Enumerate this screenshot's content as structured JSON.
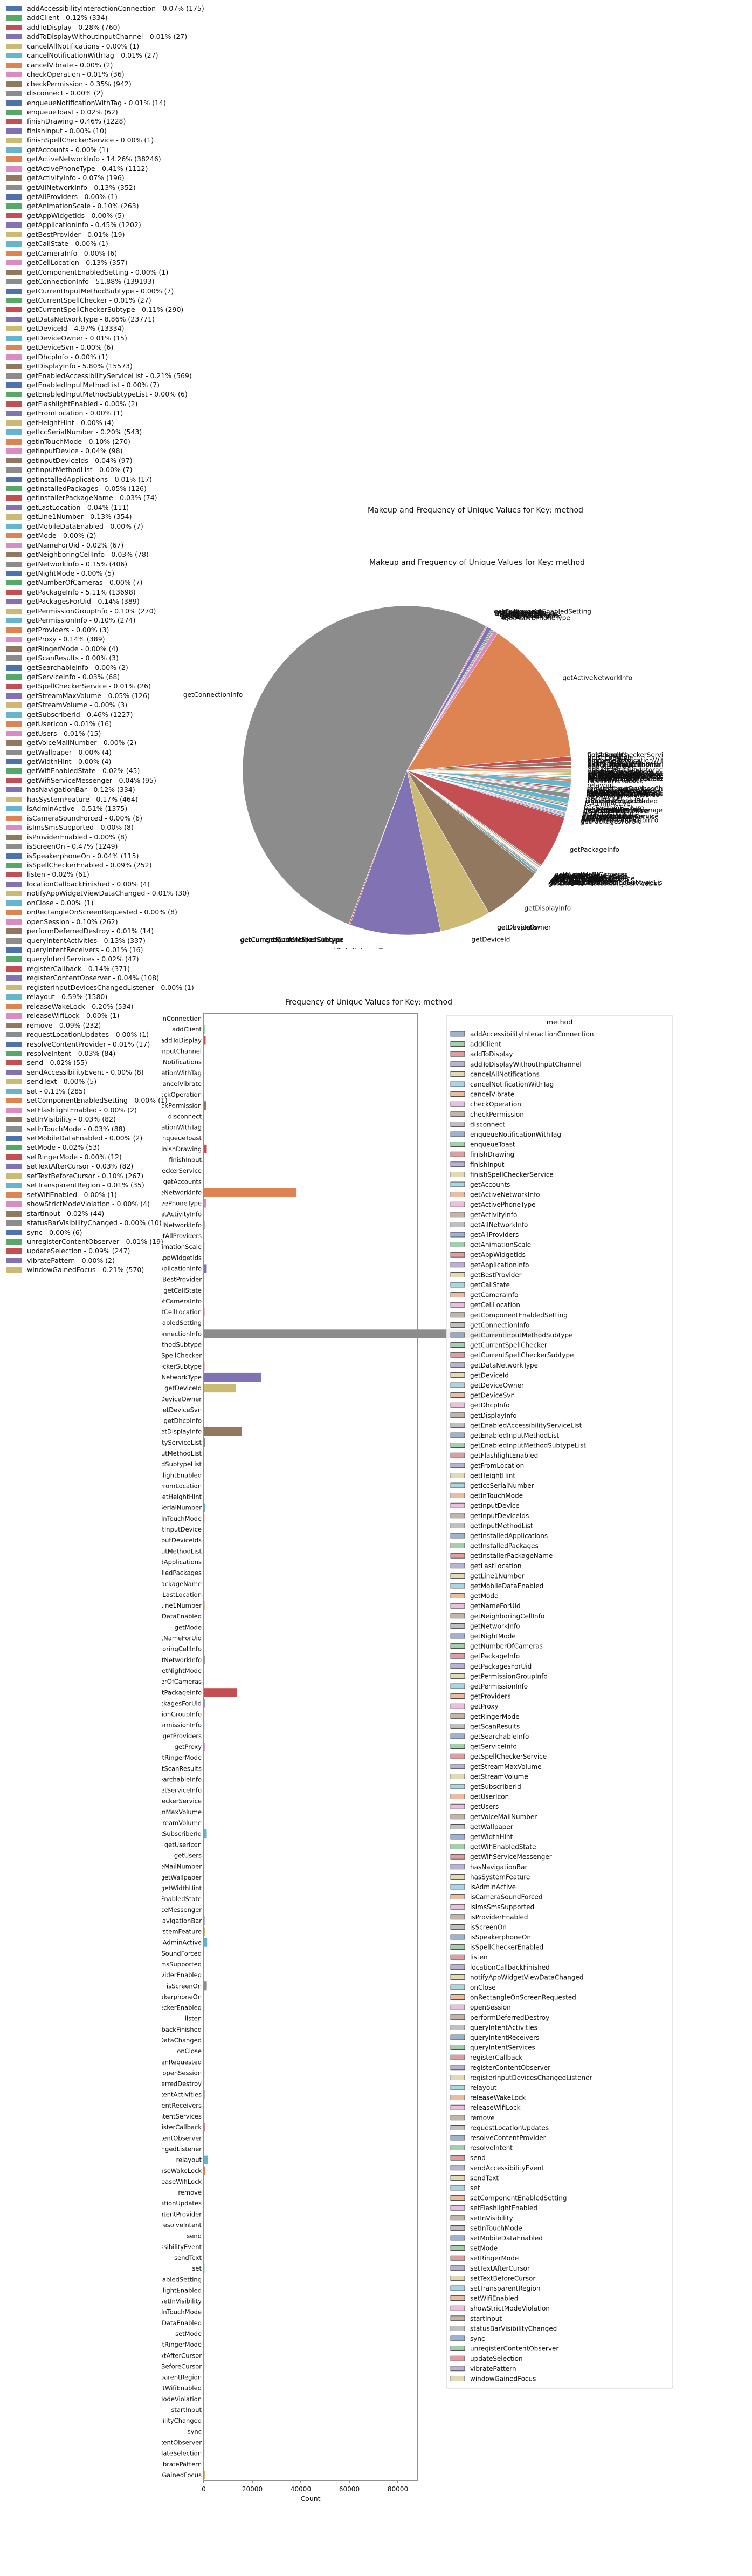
{
  "figure_title": "Makeup and Frequency of Unique Values for Key: method",
  "chart_data": [
    {
      "type": "pie",
      "title": "Makeup and Frequency of Unique Values for Key: method",
      "legend_placement": "left",
      "slices": [
        {
          "label": "addAccessibilityInteractionConnection",
          "percent": 0.07,
          "count": 175
        },
        {
          "label": "addClient",
          "percent": 0.12,
          "count": 334
        },
        {
          "label": "addToDisplay",
          "percent": 0.28,
          "count": 760
        },
        {
          "label": "addToDisplayWithoutInputChannel",
          "percent": 0.01,
          "count": 27
        },
        {
          "label": "cancelAllNotifications",
          "percent": 0.0,
          "count": 1
        },
        {
          "label": "cancelNotificationWithTag",
          "percent": 0.01,
          "count": 27
        },
        {
          "label": "cancelVibrate",
          "percent": 0.0,
          "count": 2
        },
        {
          "label": "checkOperation",
          "percent": 0.01,
          "count": 36
        },
        {
          "label": "checkPermission",
          "percent": 0.35,
          "count": 942
        },
        {
          "label": "disconnect",
          "percent": 0.0,
          "count": 2
        },
        {
          "label": "enqueueNotificationWithTag",
          "percent": 0.01,
          "count": 14
        },
        {
          "label": "enqueueToast",
          "percent": 0.02,
          "count": 62
        },
        {
          "label": "finishDrawing",
          "percent": 0.46,
          "count": 1228
        },
        {
          "label": "finishInput",
          "percent": 0.0,
          "count": 10
        },
        {
          "label": "finishSpellCheckerService",
          "percent": 0.0,
          "count": 1
        },
        {
          "label": "getAccounts",
          "percent": 0.0,
          "count": 1
        },
        {
          "label": "getActiveNetworkInfo",
          "percent": 14.26,
          "count": 38246
        },
        {
          "label": "getActivePhoneType",
          "percent": 0.41,
          "count": 1112
        },
        {
          "label": "getActivityInfo",
          "percent": 0.07,
          "count": 196
        },
        {
          "label": "getAllNetworkInfo",
          "percent": 0.13,
          "count": 352
        },
        {
          "label": "getAllProviders",
          "percent": 0.0,
          "count": 1
        },
        {
          "label": "getAnimationScale",
          "percent": 0.1,
          "count": 263
        },
        {
          "label": "getAppWidgetIds",
          "percent": 0.0,
          "count": 5
        },
        {
          "label": "getApplicationInfo",
          "percent": 0.45,
          "count": 1202
        },
        {
          "label": "getBestProvider",
          "percent": 0.01,
          "count": 19
        },
        {
          "label": "getCallState",
          "percent": 0.0,
          "count": 1
        },
        {
          "label": "getCameraInfo",
          "percent": 0.0,
          "count": 6
        },
        {
          "label": "getCellLocation",
          "percent": 0.13,
          "count": 357
        },
        {
          "label": "getComponentEnabledSetting",
          "percent": 0.0,
          "count": 1
        },
        {
          "label": "getConnectionInfo",
          "percent": 51.88,
          "count": 139193
        },
        {
          "label": "getCurrentInputMethodSubtype",
          "percent": 0.0,
          "count": 7
        },
        {
          "label": "getCurrentSpellChecker",
          "percent": 0.01,
          "count": 27
        },
        {
          "label": "getCurrentSpellCheckerSubtype",
          "percent": 0.11,
          "count": 290
        },
        {
          "label": "getDataNetworkType",
          "percent": 8.86,
          "count": 23771
        },
        {
          "label": "getDeviceId",
          "percent": 4.97,
          "count": 13334
        },
        {
          "label": "getDeviceOwner",
          "percent": 0.01,
          "count": 15
        },
        {
          "label": "getDeviceSvn",
          "percent": 0.0,
          "count": 6
        },
        {
          "label": "getDhcpInfo",
          "percent": 0.0,
          "count": 1
        },
        {
          "label": "getDisplayInfo",
          "percent": 5.8,
          "count": 15573
        },
        {
          "label": "getEnabledAccessibilityServiceList",
          "percent": 0.21,
          "count": 569
        },
        {
          "label": "getEnabledInputMethodList",
          "percent": 0.0,
          "count": 7
        },
        {
          "label": "getEnabledInputMethodSubtypeList",
          "percent": 0.0,
          "count": 6
        },
        {
          "label": "getFlashlightEnabled",
          "percent": 0.0,
          "count": 2
        },
        {
          "label": "getFromLocation",
          "percent": 0.0,
          "count": 1
        },
        {
          "label": "getHeightHint",
          "percent": 0.0,
          "count": 4
        },
        {
          "label": "getIccSerialNumber",
          "percent": 0.2,
          "count": 543
        },
        {
          "label": "getInTouchMode",
          "percent": 0.1,
          "count": 270
        },
        {
          "label": "getInputDevice",
          "percent": 0.04,
          "count": 98
        },
        {
          "label": "getInputDeviceIds",
          "percent": 0.04,
          "count": 97
        },
        {
          "label": "getInputMethodList",
          "percent": 0.0,
          "count": 7
        },
        {
          "label": "getInstalledApplications",
          "percent": 0.01,
          "count": 17
        },
        {
          "label": "getInstalledPackages",
          "percent": 0.05,
          "count": 126
        },
        {
          "label": "getInstallerPackageName",
          "percent": 0.03,
          "count": 74
        },
        {
          "label": "getLastLocation",
          "percent": 0.04,
          "count": 111
        },
        {
          "label": "getLine1Number",
          "percent": 0.13,
          "count": 354
        },
        {
          "label": "getMobileDataEnabled",
          "percent": 0.0,
          "count": 7
        },
        {
          "label": "getMode",
          "percent": 0.0,
          "count": 2
        },
        {
          "label": "getNameForUid",
          "percent": 0.02,
          "count": 67
        },
        {
          "label": "getNeighboringCellInfo",
          "percent": 0.03,
          "count": 78
        },
        {
          "label": "getNetworkInfo",
          "percent": 0.15,
          "count": 406
        },
        {
          "label": "getNightMode",
          "percent": 0.0,
          "count": 5
        },
        {
          "label": "getNumberOfCameras",
          "percent": 0.0,
          "count": 7
        },
        {
          "label": "getPackageInfo",
          "percent": 5.11,
          "count": 13698
        },
        {
          "label": "getPackagesForUid",
          "percent": 0.14,
          "count": 389
        },
        {
          "label": "getPermissionGroupInfo",
          "percent": 0.1,
          "count": 270
        },
        {
          "label": "getPermissionInfo",
          "percent": 0.1,
          "count": 274
        },
        {
          "label": "getProviders",
          "percent": 0.0,
          "count": 3
        },
        {
          "label": "getProxy",
          "percent": 0.14,
          "count": 389
        },
        {
          "label": "getRingerMode",
          "percent": 0.0,
          "count": 4
        },
        {
          "label": "getScanResults",
          "percent": 0.0,
          "count": 3
        },
        {
          "label": "getSearchableInfo",
          "percent": 0.0,
          "count": 2
        },
        {
          "label": "getServiceInfo",
          "percent": 0.03,
          "count": 68
        },
        {
          "label": "getSpellCheckerService",
          "percent": 0.01,
          "count": 26
        },
        {
          "label": "getStreamMaxVolume",
          "percent": 0.05,
          "count": 126
        },
        {
          "label": "getStreamVolume",
          "percent": 0.0,
          "count": 3
        },
        {
          "label": "getSubscriberId",
          "percent": 0.46,
          "count": 1227
        },
        {
          "label": "getUserIcon",
          "percent": 0.01,
          "count": 16
        },
        {
          "label": "getUsers",
          "percent": 0.01,
          "count": 15
        },
        {
          "label": "getVoiceMailNumber",
          "percent": 0.0,
          "count": 2
        },
        {
          "label": "getWallpaper",
          "percent": 0.0,
          "count": 4
        },
        {
          "label": "getWidthHint",
          "percent": 0.0,
          "count": 4
        },
        {
          "label": "getWifiEnabledState",
          "percent": 0.02,
          "count": 45
        },
        {
          "label": "getWifiServiceMessenger",
          "percent": 0.04,
          "count": 95
        },
        {
          "label": "hasNavigationBar",
          "percent": 0.12,
          "count": 334
        },
        {
          "label": "hasSystemFeature",
          "percent": 0.17,
          "count": 464
        },
        {
          "label": "isAdminActive",
          "percent": 0.51,
          "count": 1375
        },
        {
          "label": "isCameraSoundForced",
          "percent": 0.0,
          "count": 6
        },
        {
          "label": "isImsSmsSupported",
          "percent": 0.0,
          "count": 8
        },
        {
          "label": "isProviderEnabled",
          "percent": 0.0,
          "count": 8
        },
        {
          "label": "isScreenOn",
          "percent": 0.47,
          "count": 1249
        },
        {
          "label": "isSpeakerphoneOn",
          "percent": 0.04,
          "count": 115
        },
        {
          "label": "isSpellCheckerEnabled",
          "percent": 0.09,
          "count": 252
        },
        {
          "label": "listen",
          "percent": 0.02,
          "count": 61
        },
        {
          "label": "locationCallbackFinished",
          "percent": 0.0,
          "count": 4
        },
        {
          "label": "notifyAppWidgetViewDataChanged",
          "percent": 0.01,
          "count": 30
        },
        {
          "label": "onClose",
          "percent": 0.0,
          "count": 1
        },
        {
          "label": "onRectangleOnScreenRequested",
          "percent": 0.0,
          "count": 8
        },
        {
          "label": "openSession",
          "percent": 0.1,
          "count": 262
        },
        {
          "label": "performDeferredDestroy",
          "percent": 0.01,
          "count": 14
        },
        {
          "label": "queryIntentActivities",
          "percent": 0.13,
          "count": 337
        },
        {
          "label": "queryIntentReceivers",
          "percent": 0.01,
          "count": 16
        },
        {
          "label": "queryIntentServices",
          "percent": 0.02,
          "count": 47
        },
        {
          "label": "registerCallback",
          "percent": 0.14,
          "count": 371
        },
        {
          "label": "registerContentObserver",
          "percent": 0.04,
          "count": 108
        },
        {
          "label": "registerInputDevicesChangedListener",
          "percent": 0.0,
          "count": 1
        },
        {
          "label": "relayout",
          "percent": 0.59,
          "count": 1580
        },
        {
          "label": "releaseWakeLock",
          "percent": 0.2,
          "count": 534
        },
        {
          "label": "releaseWifiLock",
          "percent": 0.0,
          "count": 1
        },
        {
          "label": "remove",
          "percent": 0.09,
          "count": 232
        },
        {
          "label": "requestLocationUpdates",
          "percent": 0.0,
          "count": 1
        },
        {
          "label": "resolveContentProvider",
          "percent": 0.01,
          "count": 17
        },
        {
          "label": "resolveIntent",
          "percent": 0.03,
          "count": 84
        },
        {
          "label": "send",
          "percent": 0.02,
          "count": 55
        },
        {
          "label": "sendAccessibilityEvent",
          "percent": 0.0,
          "count": 8
        },
        {
          "label": "sendText",
          "percent": 0.0,
          "count": 5
        },
        {
          "label": "set",
          "percent": 0.11,
          "count": 285
        },
        {
          "label": "setComponentEnabledSetting",
          "percent": 0.0,
          "count": 1
        },
        {
          "label": "setFlashlightEnabled",
          "percent": 0.0,
          "count": 2
        },
        {
          "label": "setInVisibility",
          "percent": 0.03,
          "count": 82
        },
        {
          "label": "setInTouchMode",
          "percent": 0.03,
          "count": 88
        },
        {
          "label": "setMobileDataEnabled",
          "percent": 0.0,
          "count": 2
        },
        {
          "label": "setMode",
          "percent": 0.02,
          "count": 53
        },
        {
          "label": "setRingerMode",
          "percent": 0.0,
          "count": 12
        },
        {
          "label": "setTextAfterCursor",
          "percent": 0.03,
          "count": 82
        },
        {
          "label": "setTextBeforeCursor",
          "percent": 0.1,
          "count": 267
        },
        {
          "label": "setTransparentRegion",
          "percent": 0.01,
          "count": 35
        },
        {
          "label": "setWifiEnabled",
          "percent": 0.0,
          "count": 1
        },
        {
          "label": "showStrictModeViolation",
          "percent": 0.0,
          "count": 4
        },
        {
          "label": "startInput",
          "percent": 0.02,
          "count": 44
        },
        {
          "label": "statusBarVisibilityChanged",
          "percent": 0.0,
          "count": 10
        },
        {
          "label": "sync",
          "percent": 0.0,
          "count": 6
        },
        {
          "label": "unregisterContentObserver",
          "percent": 0.01,
          "count": 19
        },
        {
          "label": "updateSelection",
          "percent": 0.09,
          "count": 247
        },
        {
          "label": "vibratePattern",
          "percent": 0.0,
          "count": 2
        },
        {
          "label": "windowGainedFocus",
          "percent": 0.21,
          "count": 570
        }
      ]
    },
    {
      "type": "bar",
      "orientation": "horizontal",
      "title": "Frequency of Unique Values for Key: method",
      "xlabel": "Count",
      "legend_title": "method",
      "legend_placement": "right",
      "xlim": [
        0,
        88000
      ],
      "xticks": [
        0,
        20000,
        40000,
        60000,
        80000
      ],
      "grid": false
    }
  ],
  "palette": [
    "#4c72b0",
    "#55a868",
    "#c44e52",
    "#8172b3",
    "#ccb974",
    "#64b5cd",
    "#dd8452",
    "#da8bc3",
    "#937860",
    "#8c8c8c"
  ]
}
